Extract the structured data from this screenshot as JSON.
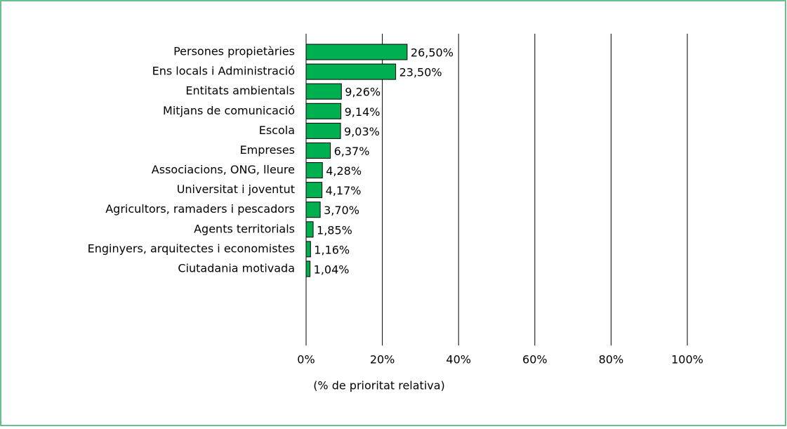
{
  "chart_data": {
    "type": "bar",
    "orientation": "horizontal",
    "categories": [
      "Persones propietàries",
      "Ens locals i Administració",
      "Entitats ambientals",
      "Mitjans de comunicació",
      "Escola",
      "Empreses",
      "Associacions, ONG, lleure",
      "Universitat i joventut",
      "Agricultors, ramaders i pescadors",
      "Agents territorials",
      "Enginyers, arquitectes i economistes",
      "Ciutadania motivada"
    ],
    "values": [
      26.5,
      23.5,
      9.26,
      9.14,
      9.03,
      6.37,
      4.28,
      4.17,
      3.7,
      1.85,
      1.16,
      1.04
    ],
    "value_labels": [
      "26,50%",
      "23,50%",
      "9,26%",
      "9,14%",
      "9,03%",
      "6,37%",
      "4,28%",
      "4,17%",
      "3,70%",
      "1,85%",
      "1,16%",
      "1,04%"
    ],
    "color": "#00b050",
    "xlabel": "(% de prioritat relativa)",
    "xlim": [
      0,
      100
    ],
    "xticks": [
      {
        "value": 0,
        "label": "0%"
      },
      {
        "value": 20,
        "label": "20%"
      },
      {
        "value": 40,
        "label": "40%"
      },
      {
        "value": 60,
        "label": "60%"
      },
      {
        "value": 80,
        "label": "80%"
      },
      {
        "value": 100,
        "label": "100%"
      }
    ],
    "grid": true
  }
}
